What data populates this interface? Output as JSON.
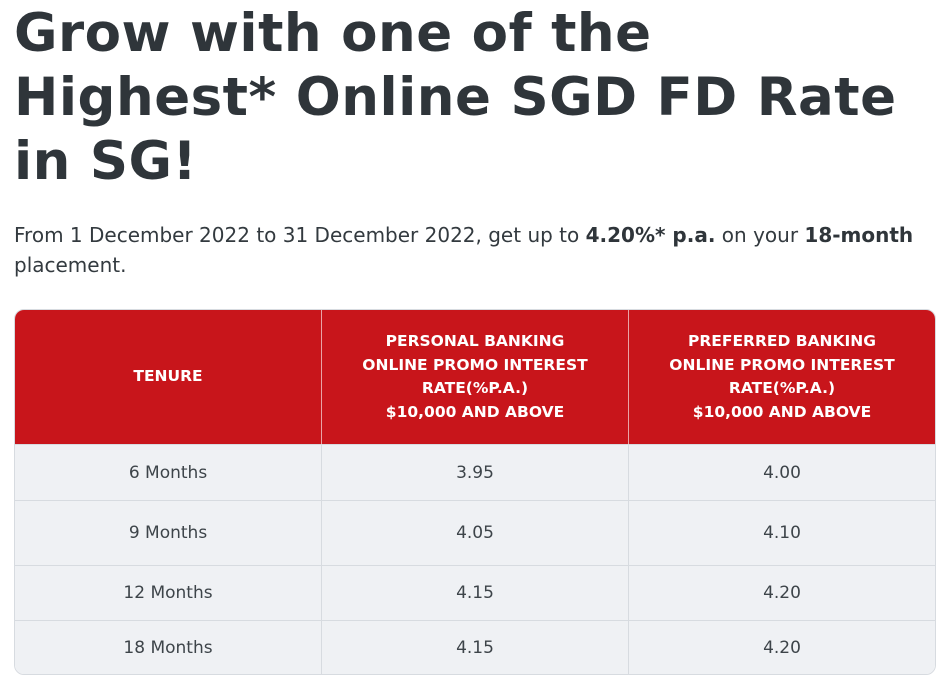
{
  "headline": {
    "line1": "Grow with one of the",
    "line2": "Highest* Online SGD FD Rate",
    "line3": "in SG!"
  },
  "subtitle": {
    "prefix": "From 1 December 2022 to 31 December 2022, get up to ",
    "rate": "4.20%* p.a.",
    "middle": " on your ",
    "tenure": "18-month",
    "suffix": " placement."
  },
  "table": {
    "headers": [
      {
        "lines": [
          "TENURE"
        ]
      },
      {
        "lines": [
          "PERSONAL BANKING",
          "ONLINE PROMO INTEREST",
          "RATE(%P.A.)",
          "$10,000 AND ABOVE"
        ]
      },
      {
        "lines": [
          "PREFERRED BANKING",
          "ONLINE PROMO INTEREST",
          "RATE(%P.A.)",
          "$10,000 AND ABOVE"
        ]
      }
    ],
    "rows": [
      {
        "tenure": "6 Months",
        "personal": "3.95",
        "preferred": "4.00"
      },
      {
        "tenure": "9 Months",
        "personal": "4.05",
        "preferred": "4.10"
      },
      {
        "tenure": "12 Months",
        "personal": "4.15",
        "preferred": "4.20"
      },
      {
        "tenure": "18 Months",
        "personal": "4.15",
        "preferred": "4.20"
      }
    ]
  },
  "colors": {
    "header_bg": "#c8151b",
    "row_bg": "#eff1f4",
    "text": "#2f353a"
  }
}
